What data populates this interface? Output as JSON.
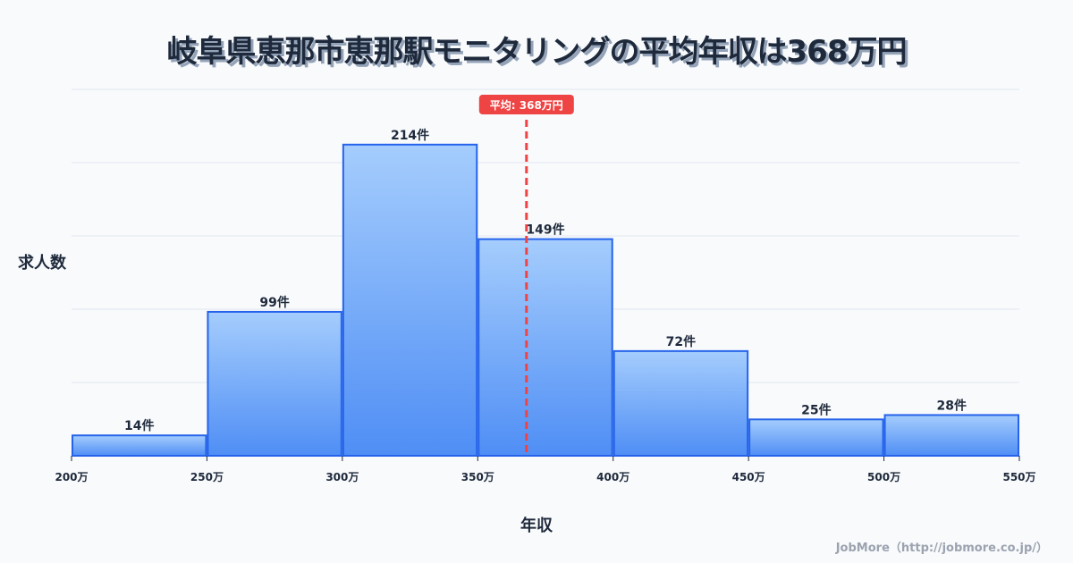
{
  "title": "岐阜県恵那市恵那駅モニタリングの平均年収は368万円",
  "y_axis_label": "求人数",
  "x_axis_label": "年収",
  "credit": "JobMore（http://jobmore.co.jp/）",
  "colors": {
    "bar_stroke": "#2563eb",
    "bar_top": "#a5cdfd",
    "bar_bottom": "#4f8ef5",
    "mean_line": "#ef4444",
    "grid": "#e2e8f0",
    "text": "#1e293b"
  },
  "chart_data": {
    "type": "bar",
    "subtype": "histogram",
    "title": "岐阜県恵那市恵那駅モニタリングの平均年収は368万円",
    "xlabel": "年収",
    "ylabel": "求人数",
    "categories": [
      "200-250万",
      "250-300万",
      "300-350万",
      "350-400万",
      "400-450万",
      "450-500万",
      "500-550万"
    ],
    "bin_edges": [
      200,
      250,
      300,
      350,
      400,
      450,
      500,
      550
    ],
    "tick_labels": [
      "200万",
      "250万",
      "300万",
      "350万",
      "400万",
      "450万",
      "500万",
      "550万"
    ],
    "values": [
      14,
      99,
      214,
      149,
      72,
      25,
      28
    ],
    "data_labels": [
      "14件",
      "99件",
      "214件",
      "149件",
      "72件",
      "25件",
      "28件"
    ],
    "xlim": [
      200,
      550
    ],
    "ylim": [
      0,
      252
    ],
    "grid": true,
    "annotation": {
      "type": "vline",
      "x": 368,
      "label": "平均: 368万円"
    }
  }
}
